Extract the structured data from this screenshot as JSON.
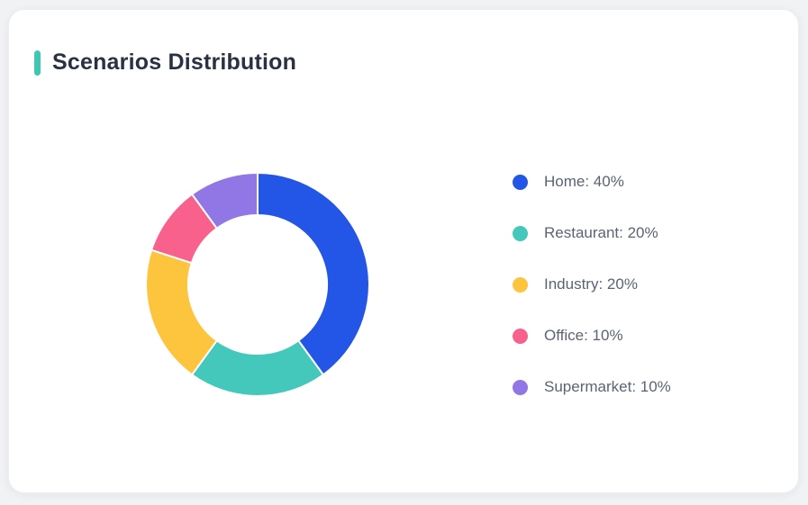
{
  "card": {
    "title": "Scenarios Distribution",
    "accent_color": "#3EC8B4"
  },
  "chart_data": {
    "type": "pie",
    "title": "Scenarios Distribution",
    "donut": true,
    "inner_radius_ratio": 0.62,
    "start_angle_deg": 0,
    "direction": "clockwise",
    "legend_position": "right",
    "slice_border_color": "#ffffff",
    "slices": [
      {
        "label": "Home",
        "value": 40,
        "color": "#2355E6",
        "legend_text": "Home: 40%"
      },
      {
        "label": "Restaurant",
        "value": 20,
        "color": "#45C8BC",
        "legend_text": "Restaurant: 20%"
      },
      {
        "label": "Industry",
        "value": 20,
        "color": "#FDC43D",
        "legend_text": "Industry: 20%"
      },
      {
        "label": "Office",
        "value": 10,
        "color": "#F8618C",
        "legend_text": "Office: 10%"
      },
      {
        "label": "Supermarket",
        "value": 10,
        "color": "#9177E5",
        "legend_text": "Supermarket: 10%"
      }
    ]
  }
}
